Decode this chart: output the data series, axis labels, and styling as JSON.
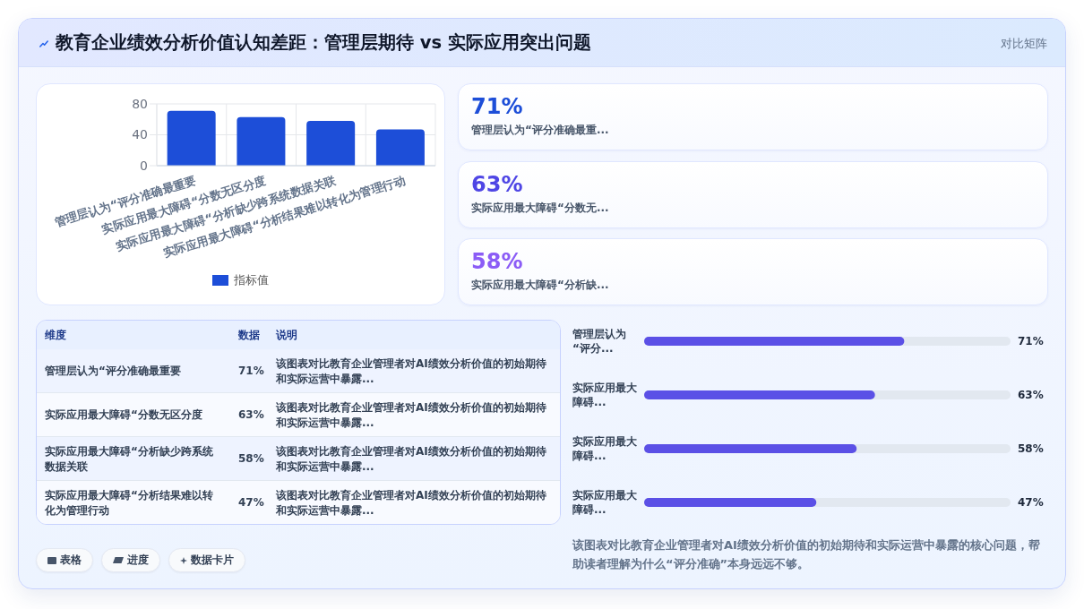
{
  "chart_data": [
    {
      "type": "other",
      "title": "教育企业绩效分析价值认知差距：管理层期待 vs 实际应用突出问题",
      "annotations": [
        "对比矩阵"
      ]
    },
    {
      "type": "bar",
      "categories": [
        "管理层认为“评分准确最重要",
        "实际应用最大障碍“分数无区分度",
        "实际应用最大障碍“分析缺少跨系统数据关联",
        "实际应用最大障碍“分析结果难以转化为管理行动"
      ],
      "series": [
        {
          "name": "指标值",
          "color": "#1d4ed8",
          "values": [
            71,
            63,
            58,
            47
          ]
        }
      ],
      "ylim": [
        0,
        80
      ],
      "yticks": [
        0,
        40,
        80
      ],
      "grid": true,
      "legend": "bottom"
    },
    {
      "type": "other",
      "annotations": [
        "71%",
        "管理层认为“评分准确最重...",
        "63%",
        "实际应用最大障碍“分数无...",
        "58%",
        "实际应用最大障碍“分析缺..."
      ],
      "colors": [
        "#1d4ed8",
        "#4f46e5",
        "#8b5cf6"
      ]
    },
    {
      "type": "other",
      "annotations": [
        "维度",
        "数据",
        "说明",
        "管理层认为“评分准确最重要",
        "71%",
        "该图表对比教育企业管理者对AI绩效分析价值的初始期待和实际运营中暴露...",
        "实际应用最大障碍“分数无区分度",
        "63%",
        "该图表对比教育企业管理者对AI绩效分析价值的初始期待和实际运营中暴露...",
        "实际应用最大障碍“分析缺少跨系统数据关联",
        "58%",
        "该图表对比教育企业管理者对AI绩效分析价值的初始期待和实际运营中暴露...",
        "实际应用最大障碍“分析结果难以转化为管理行动",
        "47%",
        "该图表对比教育企业管理者对AI绩效分析价值的初始期待和实际运营中暴露..."
      ]
    },
    {
      "type": "bar",
      "orientation": "horizontal",
      "categories": [
        "管理层认为“评分...",
        "实际应用最大障碍...",
        "实际应用最大障碍...",
        "实际应用最大障碍..."
      ],
      "values": [
        71,
        63,
        58,
        47
      ],
      "value_labels": [
        "71%",
        "63%",
        "58%",
        "47%"
      ],
      "color": "#5b50e6",
      "xlim": [
        0,
        100
      ],
      "tick_labels": "y",
      "annotations": [
        "该图表对比教育企业管理者对AI绩效分析价值的初始期待和实际运营中暴露的核心问题，帮助读者理解为什么“评分准确”本身远远不够。"
      ]
    },
    {
      "type": "other",
      "annotations": [
        "表格",
        "进度",
        "数据卡片"
      ]
    }
  ]
}
